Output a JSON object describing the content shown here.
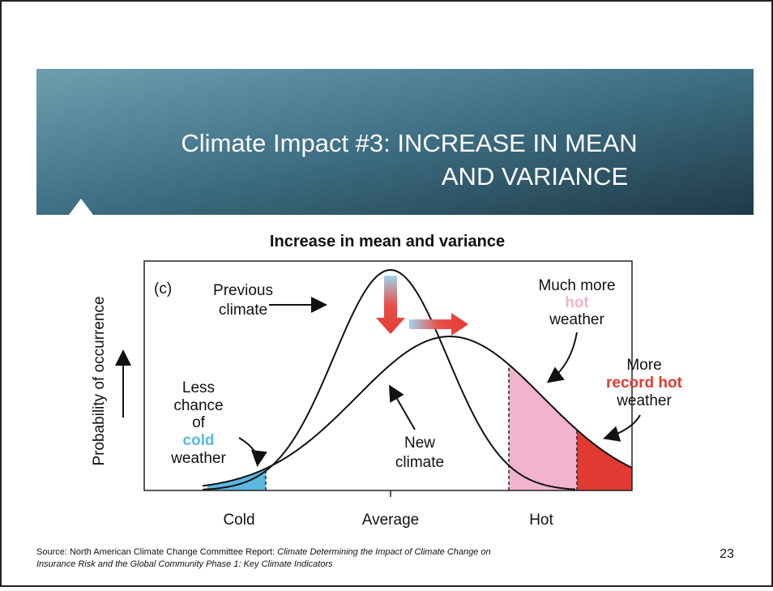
{
  "slide": {
    "title_lines": [
      "Climate Impact #3: INCREASE IN MEAN",
      "AND VARIANCE"
    ],
    "page_number": "23"
  },
  "figure": {
    "title": "Increase in mean and variance",
    "panel_label": "(c)",
    "y_axis_label": "Probability of occurrence",
    "x_labels": [
      "Cold",
      "Average",
      "Hot"
    ],
    "previous_climate": [
      "Previous",
      "climate"
    ],
    "new_climate": [
      "New",
      "climate"
    ],
    "cold_note": [
      "Less",
      "chance",
      "of",
      "cold",
      "weather"
    ],
    "hot_note": [
      "Much more",
      "hot",
      "weather"
    ],
    "record_note": [
      "More",
      "record hot",
      "weather"
    ]
  },
  "source": {
    "text": "Source: North American Climate Change Committee Report: ",
    "italic_line1": "Climate Determining the Impact of Climate Change on",
    "italic_line2": "Insurance Risk and the Global Community Phase 1: Key Climate Indicators"
  }
}
